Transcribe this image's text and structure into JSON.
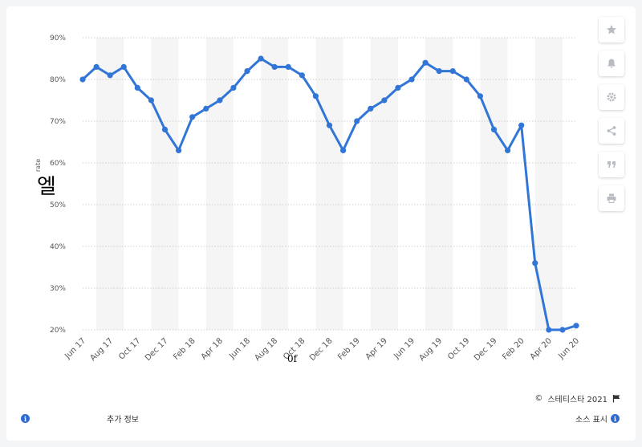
{
  "chart_data": {
    "type": "line",
    "title": "",
    "xlabel": "",
    "ylabel": "rate",
    "ylim": [
      20,
      90
    ],
    "yticks": [
      "20%",
      "30%",
      "40%",
      "50%",
      "60%",
      "70%",
      "80%",
      "90%"
    ],
    "ytick_values": [
      20,
      30,
      40,
      50,
      60,
      70,
      80,
      90
    ],
    "x": [
      "Jun 17",
      "Jul 17",
      "Aug 17",
      "Sep 17",
      "Oct 17",
      "Nov 17",
      "Dec 17",
      "Jan 18",
      "Feb 18",
      "Mar 18",
      "Apr 18",
      "May 18",
      "Jun 18",
      "Jul 18",
      "Aug 18",
      "Sep 18",
      "Oct 18",
      "Nov 18",
      "Dec 18",
      "Jan 19",
      "Feb 19",
      "Mar 19",
      "Apr 19",
      "May 19",
      "Jun 19",
      "Jul 19",
      "Aug 19",
      "Sep 19",
      "Oct 19",
      "Nov 19",
      "Dec 19",
      "Jan 20",
      "Feb 20",
      "Mar 20",
      "Apr 20",
      "May 20",
      "Jun 20"
    ],
    "xtick_labels": [
      "Jun 17",
      "Aug 17",
      "Oct 17",
      "Dec 17",
      "Feb 18",
      "Apr 18",
      "Jun 18",
      "Aug 18",
      "Oct 18",
      "Dec 18",
      "Feb 19",
      "Apr 19",
      "Jun 19",
      "Aug 19",
      "Oct 19",
      "Dec 19",
      "Feb 20",
      "Apr 20",
      "Jun 20"
    ],
    "series": [
      {
        "values": [
          80,
          83,
          81,
          83,
          78,
          75,
          68,
          63,
          71,
          73,
          75,
          78,
          82,
          85,
          83,
          83,
          81,
          76,
          69,
          63,
          70,
          73,
          75,
          78,
          80,
          84,
          82,
          82,
          80,
          76,
          68,
          63,
          69,
          36,
          20,
          20,
          21
        ]
      }
    ],
    "grid": true,
    "legend": "none",
    "colors": {
      "line": "#3176d6",
      "band": "#f5f5f5",
      "grid": "#cfcfcf",
      "tick_text": "#555555"
    }
  },
  "overlay": {
    "glyph": "엘",
    "axis_fragment": "0f"
  },
  "toolbar": {
    "icons": [
      "star-icon",
      "bell-icon",
      "gear-icon",
      "share-icon",
      "quote-icon",
      "print-icon"
    ]
  },
  "footer": {
    "credit": "스테티스타 2021",
    "copyright_symbol": "©",
    "additional_info": "추가 정보",
    "show_source": "소스 표시"
  }
}
